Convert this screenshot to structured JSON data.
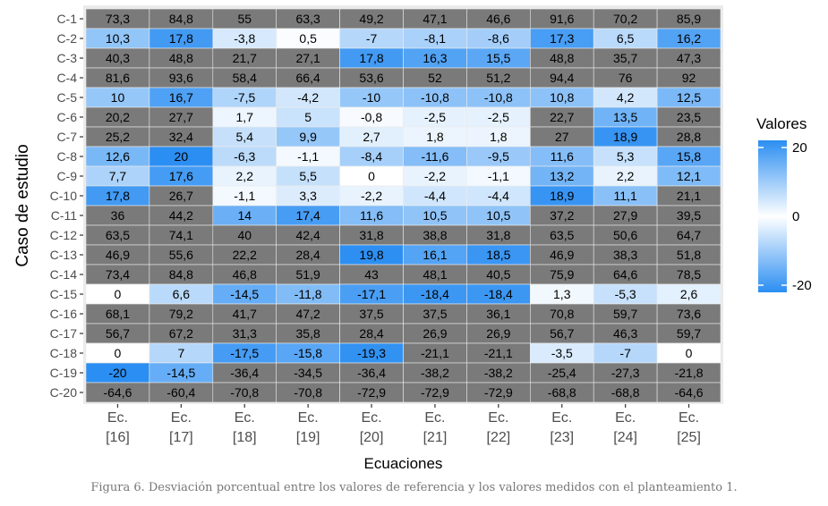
{
  "chart_data": {
    "type": "heatmap",
    "xlabel": "Ecuaciones",
    "ylabel": "Caso de estudio",
    "x_categories": [
      "Ec.\n[16]",
      "Ec.\n[17]",
      "Ec.\n[18]",
      "Ec.\n[19]",
      "Ec.\n[20]",
      "Ec.\n[21]",
      "Ec.\n[22]",
      "Ec.\n[23]",
      "Ec.\n[24]",
      "Ec.\n[25]"
    ],
    "y_categories": [
      "C-1",
      "C-2",
      "C-3",
      "C-4",
      "C-5",
      "C-6",
      "C-7",
      "C-8",
      "C-9",
      "C-10",
      "C-11",
      "C-12",
      "C-13",
      "C-14",
      "C-15",
      "C-16",
      "C-17",
      "C-18",
      "C-19",
      "C-20"
    ],
    "values": [
      [
        73.3,
        84.8,
        55,
        63.3,
        49.2,
        47.1,
        46.6,
        91.6,
        70.2,
        85.9
      ],
      [
        10.3,
        17.8,
        -3.8,
        0.5,
        -7,
        -8.1,
        -8.6,
        17.3,
        6.5,
        16.2
      ],
      [
        40.3,
        48.8,
        21.7,
        27.1,
        17.8,
        16.3,
        15.5,
        48.8,
        35.7,
        47.3
      ],
      [
        81.6,
        93.6,
        58.4,
        66.4,
        53.6,
        52,
        51.2,
        94.4,
        76,
        92
      ],
      [
        10,
        16.7,
        -7.5,
        -4.2,
        -10,
        -10.8,
        -10.8,
        10.8,
        4.2,
        12.5
      ],
      [
        20.2,
        27.7,
        1.7,
        5,
        -0.8,
        -2.5,
        -2.5,
        22.7,
        13.5,
        23.5
      ],
      [
        25.2,
        32.4,
        5.4,
        9.9,
        2.7,
        1.8,
        1.8,
        27,
        18.9,
        28.8
      ],
      [
        12.6,
        20,
        -6.3,
        -1.1,
        -8.4,
        -11.6,
        -9.5,
        11.6,
        5.3,
        15.8
      ],
      [
        7.7,
        17.6,
        2.2,
        5.5,
        0,
        -2.2,
        -1.1,
        13.2,
        2.2,
        12.1
      ],
      [
        17.8,
        26.7,
        -1.1,
        3.3,
        -2.2,
        -4.4,
        -4.4,
        18.9,
        11.1,
        21.1
      ],
      [
        36,
        44.2,
        14,
        17.4,
        11.6,
        10.5,
        10.5,
        37.2,
        27.9,
        39.5
      ],
      [
        63.5,
        74.1,
        40,
        42.4,
        31.8,
        38.8,
        31.8,
        63.5,
        50.6,
        64.7
      ],
      [
        46.9,
        55.6,
        22.2,
        28.4,
        19.8,
        16.1,
        18.5,
        46.9,
        38.3,
        51.8
      ],
      [
        73.4,
        84.8,
        46.8,
        51.9,
        43,
        48.1,
        40.5,
        75.9,
        64.6,
        78.5
      ],
      [
        0,
        6.6,
        -14.5,
        -11.8,
        -17.1,
        -18.4,
        -18.4,
        1.3,
        -5.3,
        2.6
      ],
      [
        68.1,
        79.2,
        41.7,
        47.2,
        37.5,
        37.5,
        36.1,
        70.8,
        59.7,
        73.6
      ],
      [
        56.7,
        67.2,
        31.3,
        35.8,
        28.4,
        26.9,
        26.9,
        56.7,
        46.3,
        59.7
      ],
      [
        0,
        7,
        -17.5,
        -15.8,
        -19.3,
        -21.1,
        -21.1,
        -3.5,
        -7,
        0
      ],
      [
        -20,
        -14.5,
        -36.4,
        -34.5,
        -36.4,
        -38.2,
        -38.2,
        -25.4,
        -27.3,
        -21.8
      ],
      [
        -64.6,
        -60.4,
        -70.8,
        -70.8,
        -72.9,
        -72.9,
        -72.9,
        -68.8,
        -68.8,
        -64.6
      ]
    ],
    "color_scale": {
      "min": -20,
      "mid": 0,
      "max": 20,
      "low_color": "#2b8ef2",
      "mid_color": "#ffffff",
      "high_color": "#2b8ef2",
      "na_color": "#7a7a7a"
    },
    "legend": {
      "title": "Valores",
      "ticks": [
        "20",
        "0",
        "-20"
      ],
      "placement": "right"
    },
    "grid": true,
    "decimal_separator": ","
  },
  "caption": "Figura 6. Desviación porcentual entre los valores de referencia y los valores medidos con el planteamiento 1."
}
